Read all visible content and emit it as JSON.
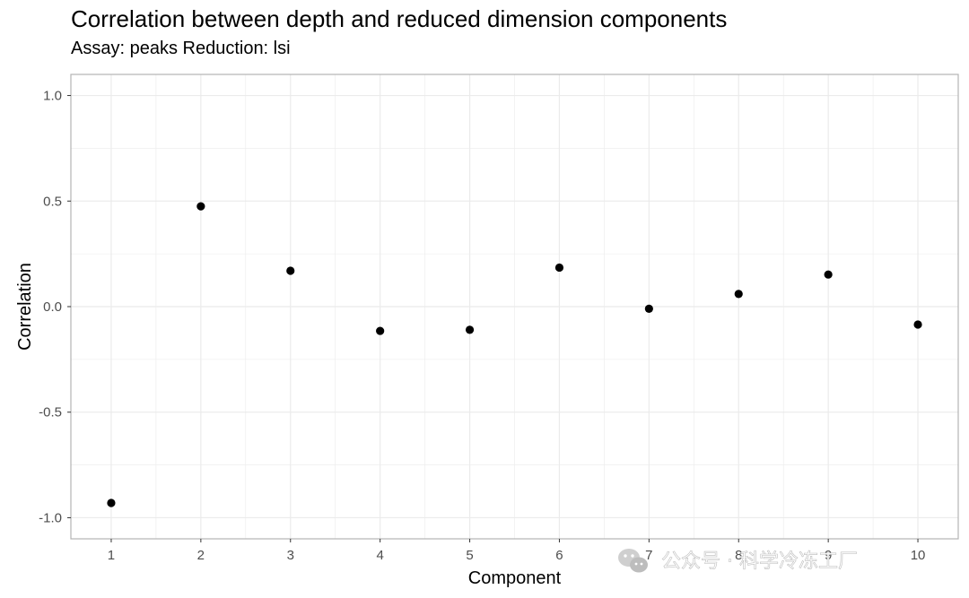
{
  "watermark": {
    "text": "公众号 · 科学冷冻工厂",
    "icon": "wechat-icon"
  },
  "chart_data": {
    "type": "scatter",
    "title": "Correlation between depth and reduced dimension components",
    "subtitle": "Assay: peaks Reduction: lsi",
    "xlabel": "Component",
    "ylabel": "Correlation",
    "x": [
      1,
      2,
      3,
      4,
      5,
      6,
      7,
      8,
      9,
      10
    ],
    "y": [
      -0.93,
      0.475,
      0.17,
      -0.115,
      -0.11,
      0.185,
      -0.01,
      0.06,
      0.152,
      -0.085
    ],
    "xticks": [
      "1",
      "2",
      "3",
      "4",
      "5",
      "6",
      "7",
      "8",
      "9",
      "10"
    ],
    "yticks": [
      "-1.0",
      "-0.5",
      "0.0",
      "0.5",
      "1.0"
    ],
    "xlim": [
      0.55,
      10.45
    ],
    "ylim": [
      -1.1,
      1.1
    ],
    "grid": true,
    "point_color": "#000000",
    "panel_border_color": "#b3b3b3",
    "grid_color": "#ebebeb"
  }
}
